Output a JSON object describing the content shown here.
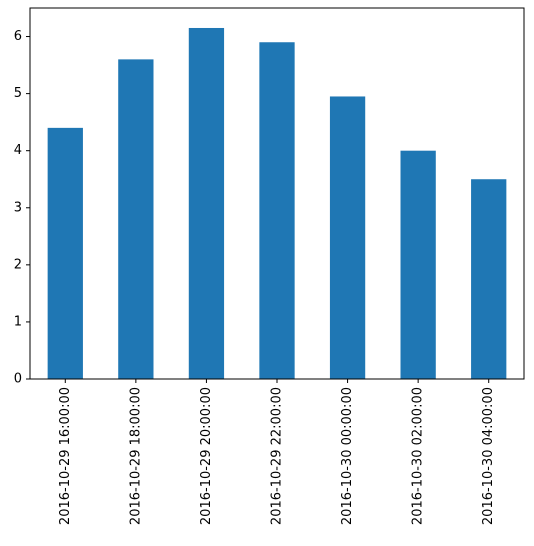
{
  "chart_data": {
    "type": "bar",
    "categories": [
      "2016-10-29 16:00:00",
      "2016-10-29 18:00:00",
      "2016-10-29 20:00:00",
      "2016-10-29 22:00:00",
      "2016-10-30 00:00:00",
      "2016-10-30 02:00:00",
      "2016-10-30 04:00:00"
    ],
    "values": [
      4.4,
      5.6,
      6.15,
      5.9,
      4.95,
      4.0,
      3.5
    ],
    "ylim": [
      0,
      6.5
    ],
    "yticks": [
      0,
      1,
      2,
      3,
      4,
      5,
      6
    ],
    "title": "",
    "xlabel": "",
    "ylabel": "",
    "grid": false,
    "legend": "none",
    "colors": {
      "bar": "#1f77b4"
    }
  }
}
